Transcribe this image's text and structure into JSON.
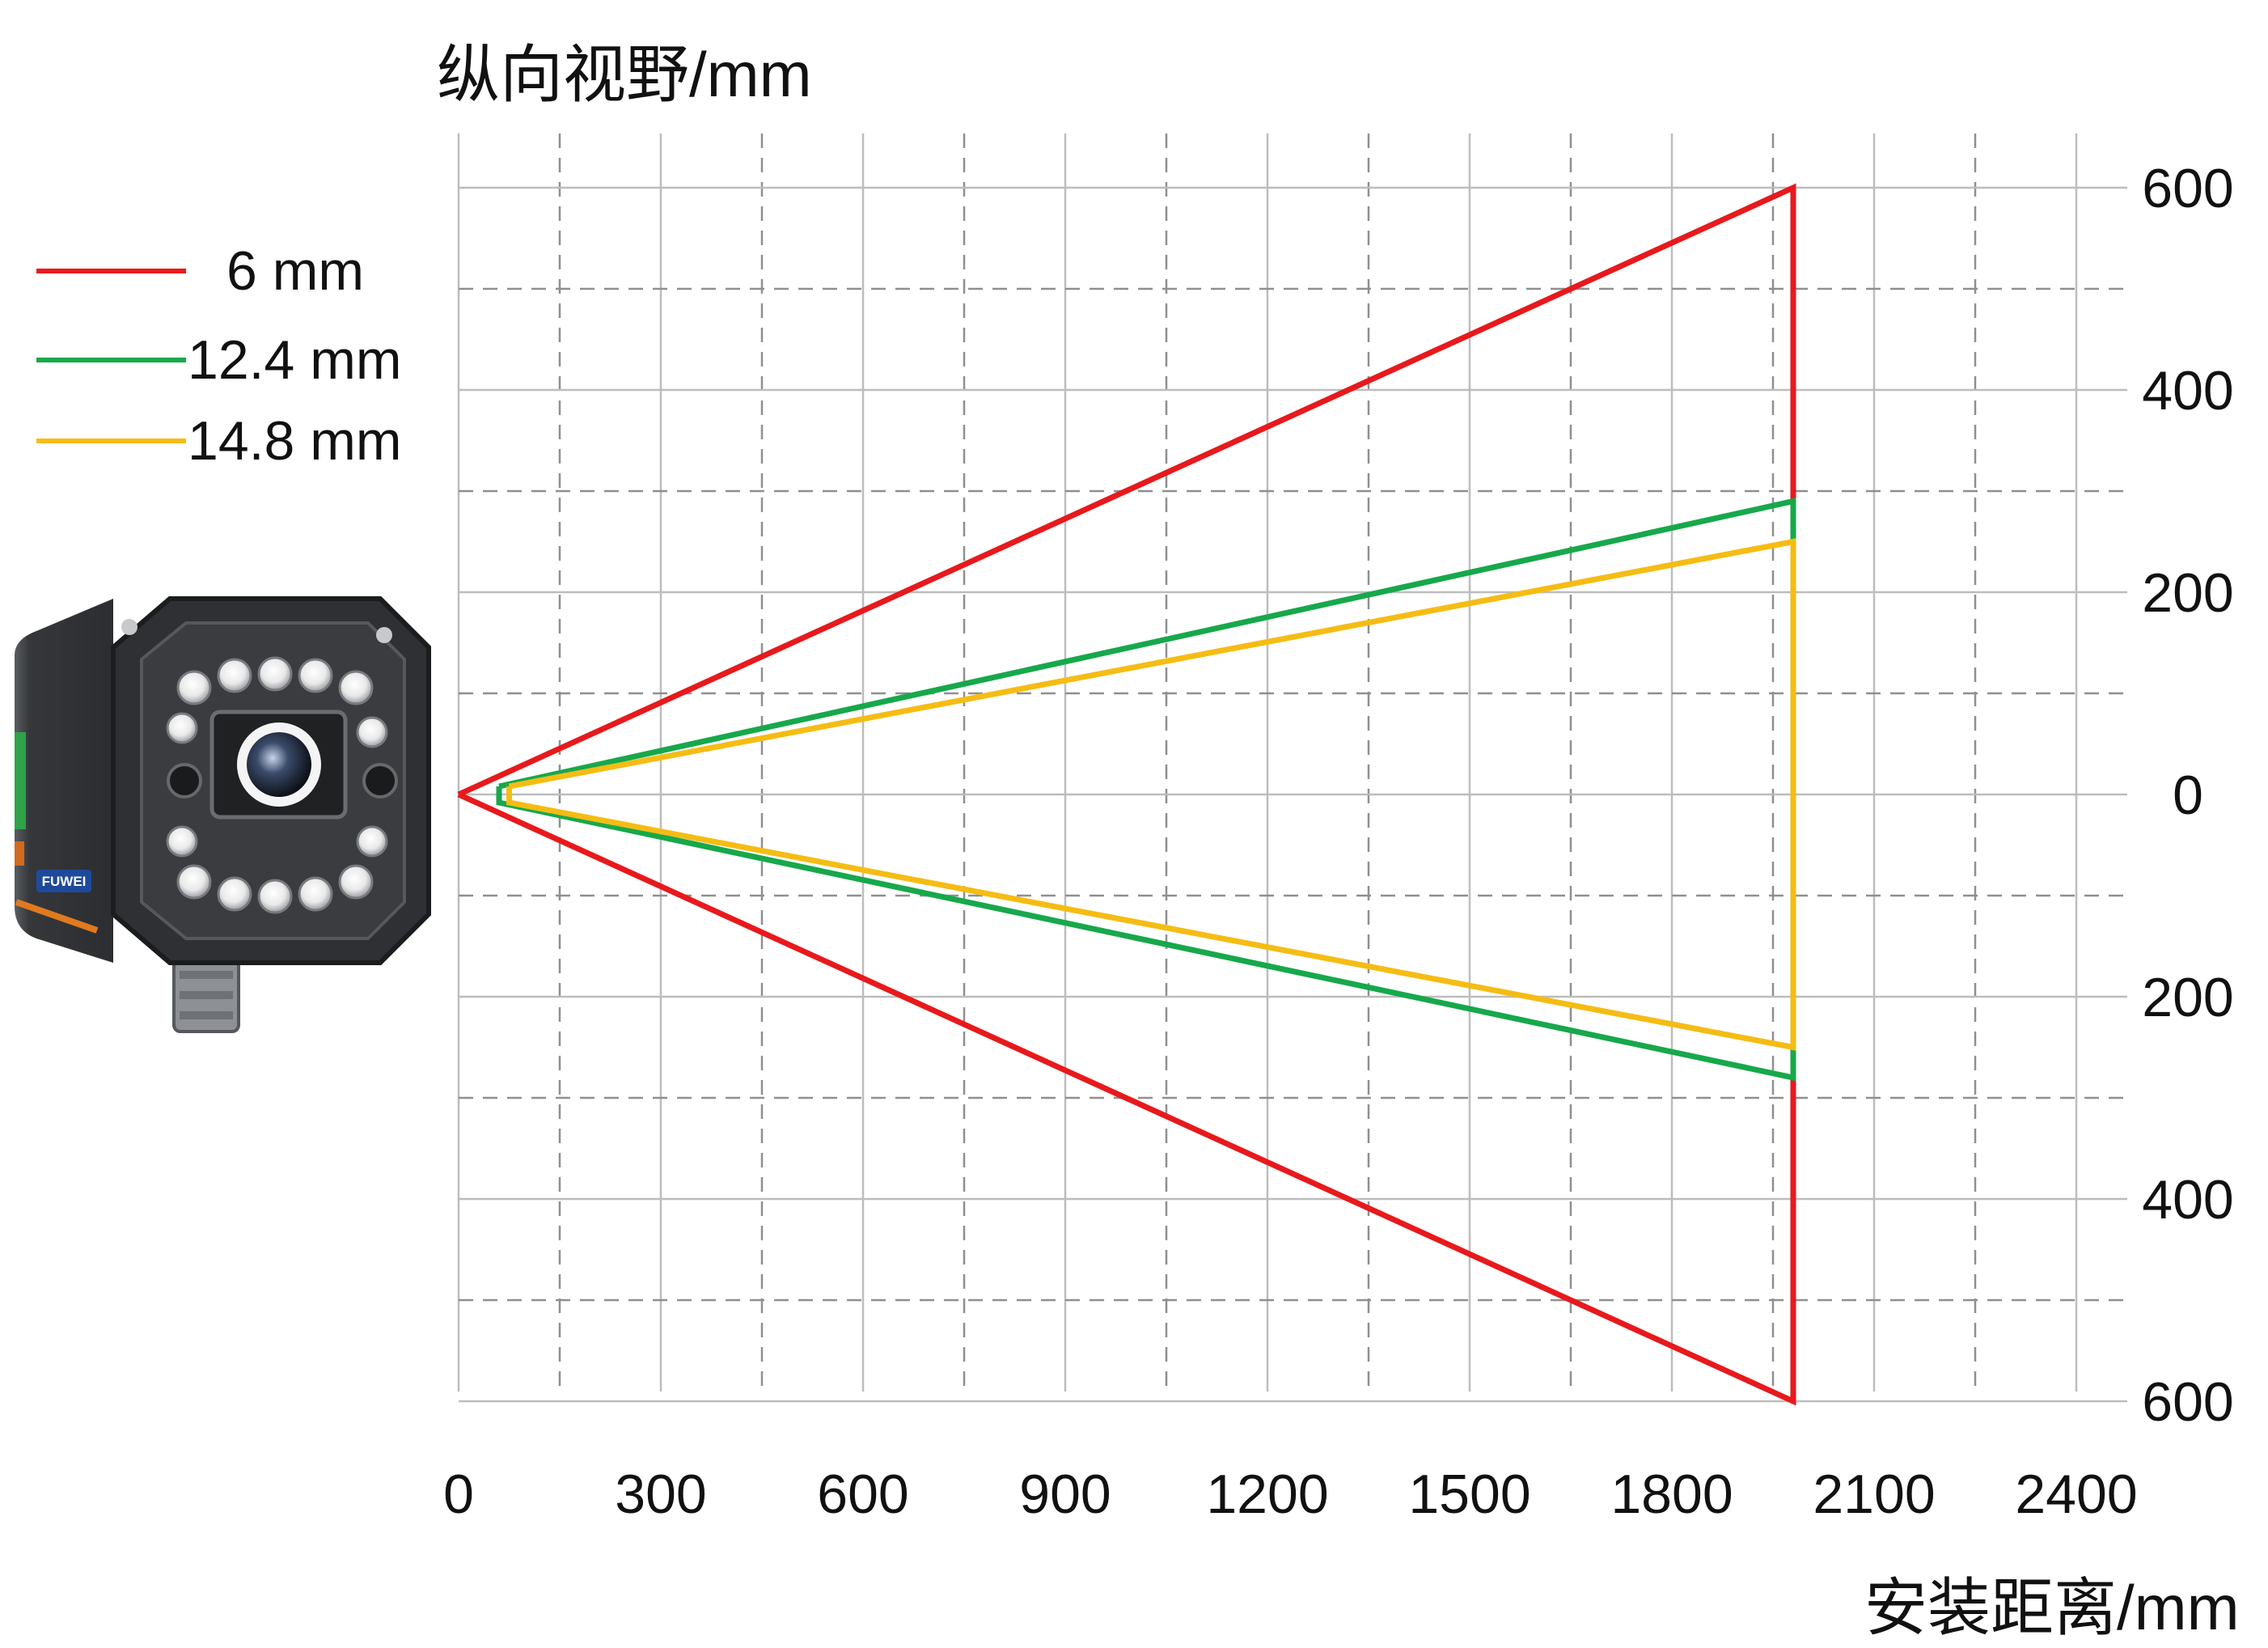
{
  "chart_data": {
    "type": "line",
    "ylabel": "纵向视野/mm",
    "xlabel": "安装距离/mm",
    "x_ticks": [
      "0",
      "300",
      "600",
      "900",
      "1200",
      "1500",
      "1800",
      "2100",
      "2400"
    ],
    "y_ticks_right": [
      "600",
      "400",
      "200",
      "0",
      "200",
      "400",
      "600"
    ],
    "xlim": [
      0,
      2450
    ],
    "ylim": [
      -600,
      600
    ],
    "grid": true,
    "legend_position": "left",
    "series": [
      {
        "name": "6   mm",
        "color": "#e8191c",
        "points": [
          [
            0,
            0
          ],
          [
            1980,
            600
          ],
          [
            1980,
            -600
          ],
          [
            0,
            0
          ]
        ]
      },
      {
        "name": "12.4 mm",
        "color": "#17a84b",
        "points": [
          [
            60,
            8
          ],
          [
            1980,
            290
          ],
          [
            1980,
            -280
          ],
          [
            60,
            -8
          ],
          [
            60,
            8
          ]
        ]
      },
      {
        "name": "14.8 mm",
        "color": "#f5bc14",
        "points": [
          [
            75,
            8
          ],
          [
            1980,
            250
          ],
          [
            1980,
            -250
          ],
          [
            75,
            -8
          ],
          [
            75,
            8
          ]
        ]
      }
    ]
  },
  "legend": {
    "items": [
      {
        "label": "6   mm",
        "color": "#e8191c"
      },
      {
        "label": "12.4 mm",
        "color": "#17a84b"
      },
      {
        "label": "14.8 mm",
        "color": "#f5bc14"
      }
    ]
  },
  "camera": {
    "brand": "FUWEI"
  }
}
